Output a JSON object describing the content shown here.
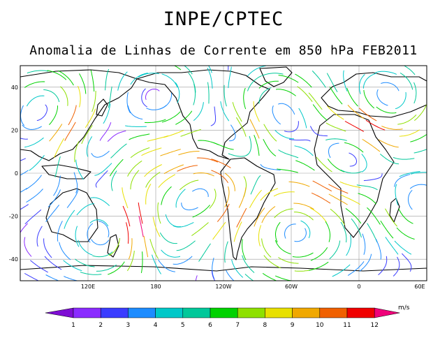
{
  "title": "INPE/CPTEC",
  "subtitle": "Anomalia de Linhas de Corrente em 850 hPa FEB2011",
  "map": {
    "lon_range": [
      60,
      420
    ],
    "lat_range": [
      -50,
      50
    ],
    "lat_ticks": [
      {
        "value": 40,
        "label": "40"
      },
      {
        "value": 20,
        "label": "20"
      },
      {
        "value": 0,
        "label": "0"
      },
      {
        "value": -20,
        "label": "-20"
      },
      {
        "value": -40,
        "label": "-40"
      }
    ],
    "lon_ticks": [
      {
        "value": 120,
        "label": "120E"
      },
      {
        "value": 180,
        "label": "180"
      },
      {
        "value": 240,
        "label": "120W"
      },
      {
        "value": 300,
        "label": "60W"
      },
      {
        "value": 360,
        "label": "0"
      },
      {
        "value": 420,
        "label": "60E"
      }
    ],
    "grid": true,
    "land_color": "#000000",
    "grid_color": "#9a9a9a"
  },
  "colorbar": {
    "unit": "m/s",
    "labels": [
      "1",
      "2",
      "3",
      "4",
      "5",
      "6",
      "7",
      "8",
      "9",
      "10",
      "11",
      "12"
    ],
    "colors": [
      "#7e0ed4",
      "#8a2bff",
      "#3a3cff",
      "#1d8cff",
      "#00c8c8",
      "#00c89a",
      "#00d200",
      "#8ee000",
      "#e8e000",
      "#f0a800",
      "#f06000",
      "#f00000",
      "#f0007a"
    ]
  }
}
